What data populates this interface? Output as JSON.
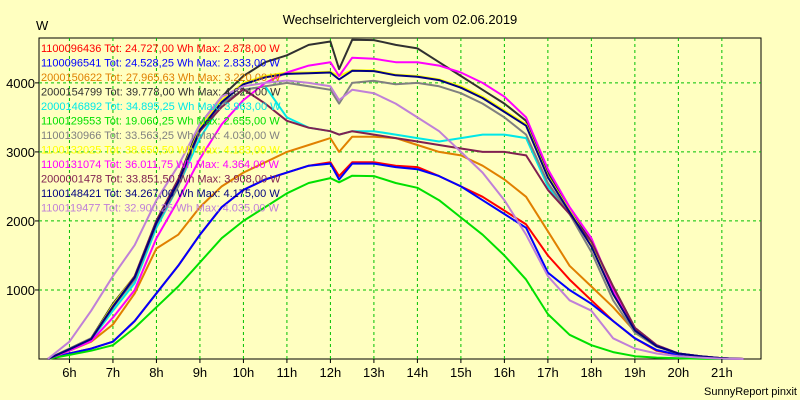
{
  "chart_data": {
    "type": "line",
    "title": "Wechselrichtervergleich vom 02.06.2019",
    "ylabel": "W",
    "xlabel": "",
    "footer": "SunnyReport pinxit",
    "ylim": [
      0,
      4650
    ],
    "xlim": [
      5.3,
      21.9
    ],
    "yticks": [
      1000,
      2000,
      3000,
      4000
    ],
    "ytick_labels": [
      "1000",
      "2000",
      "3000",
      "4000"
    ],
    "xticks": [
      6,
      7,
      8,
      9,
      10,
      11,
      12,
      13,
      14,
      15,
      16,
      17,
      18,
      19,
      20,
      21
    ],
    "xtick_labels": [
      "6h",
      "7h",
      "8h",
      "9h",
      "10h",
      "11h",
      "12h",
      "13h",
      "14h",
      "15h",
      "16h",
      "17h",
      "18h",
      "19h",
      "20h",
      "21h"
    ],
    "grid": true,
    "legend_position": "top-left",
    "x": [
      5.5,
      6,
      6.5,
      7,
      7.5,
      8,
      8.5,
      9,
      9.5,
      10,
      10.5,
      11,
      11.5,
      12,
      12.2,
      12.5,
      13,
      13.5,
      14,
      14.5,
      15,
      15.5,
      16,
      16.5,
      17,
      17.5,
      18,
      18.5,
      19,
      19.5,
      20,
      20.5,
      21,
      21.5
    ],
    "series": [
      {
        "name": "1100096436",
        "legend": "1100096436 Tot: 24.727,00 Wh Max: 2.878,00 W",
        "color": "#ff0000",
        "values": [
          0,
          80,
          150,
          250,
          550,
          950,
          1350,
          1800,
          2200,
          2450,
          2600,
          2700,
          2800,
          2850,
          2650,
          2850,
          2850,
          2800,
          2780,
          2650,
          2500,
          2350,
          2150,
          1950,
          1500,
          1150,
          850,
          550,
          300,
          120,
          60,
          30,
          10,
          0
        ]
      },
      {
        "name": "1100096541",
        "legend": "1100096541 Tot: 24.528,25 Wh Max: 2.833,00 W",
        "color": "#0000ff",
        "values": [
          0,
          80,
          150,
          250,
          550,
          950,
          1350,
          1800,
          2200,
          2450,
          2600,
          2700,
          2800,
          2830,
          2600,
          2830,
          2830,
          2780,
          2750,
          2650,
          2500,
          2300,
          2100,
          1900,
          1250,
          1000,
          800,
          550,
          300,
          130,
          60,
          30,
          10,
          0
        ]
      },
      {
        "name": "2000150622",
        "legend": "2000150622 Tot: 27.965,63 Wh Max: 3.220,00 W",
        "color": "#e08000",
        "values": [
          0,
          120,
          250,
          500,
          950,
          1600,
          1800,
          2200,
          2500,
          2700,
          2850,
          3000,
          3100,
          3200,
          3000,
          3220,
          3220,
          3200,
          3100,
          3000,
          2950,
          2800,
          2600,
          2350,
          1850,
          1350,
          1050,
          750,
          400,
          180,
          80,
          40,
          10,
          0
        ]
      },
      {
        "name": "2000154799",
        "legend": "2000154799 Tot: 39.778,00 Wh Max: 4.624,00 W",
        "color": "#303030",
        "values": [
          0,
          150,
          300,
          800,
          1200,
          2000,
          2600,
          3400,
          3800,
          4100,
          4300,
          4400,
          4550,
          4600,
          4200,
          4624,
          4620,
          4550,
          4500,
          4300,
          4100,
          3900,
          3700,
          3450,
          2700,
          2150,
          1700,
          1050,
          450,
          200,
          80,
          40,
          10,
          0
        ]
      },
      {
        "name": "2000146892",
        "legend": "2000146892 Tot: 34.895,25 Wh Max: 3.963,00 W",
        "color": "#00e8e8",
        "values": [
          0,
          130,
          280,
          700,
          1100,
          1900,
          2500,
          3200,
          3700,
          3900,
          3950,
          3500,
          3350,
          3300,
          3250,
          3300,
          3300,
          3250,
          3200,
          3150,
          3200,
          3250,
          3250,
          3200,
          2500,
          2100,
          1650,
          1000,
          450,
          200,
          80,
          40,
          10,
          0
        ]
      },
      {
        "name": "1100129553",
        "legend": "1100129553 Tot: 19.060,25 Wh Max: 2.655,00 W",
        "color": "#00e000",
        "values": [
          0,
          60,
          120,
          200,
          450,
          750,
          1050,
          1400,
          1750,
          2000,
          2200,
          2400,
          2550,
          2620,
          2560,
          2655,
          2650,
          2550,
          2480,
          2300,
          2050,
          1800,
          1500,
          1150,
          650,
          350,
          200,
          100,
          40,
          20,
          10,
          5,
          0,
          0
        ]
      },
      {
        "name": "1100130966",
        "legend": "1100130966 Tot: 33.563,25 Wh Max: 4.030,00 W",
        "color": "#808080",
        "values": [
          0,
          150,
          300,
          750,
          1150,
          1950,
          2500,
          3300,
          3700,
          3900,
          3950,
          4000,
          3950,
          3900,
          3700,
          4000,
          4030,
          3980,
          4000,
          3950,
          3850,
          3700,
          3500,
          3250,
          2550,
          2100,
          1550,
          850,
          380,
          180,
          80,
          40,
          10,
          0
        ]
      },
      {
        "name": "1100132025",
        "legend": "1100132025 Tot: 38.650,50 Wh Max: 4.183,00 W",
        "color": "#ffff00",
        "values": [
          0,
          140,
          290,
          780,
          1200,
          1980,
          2580,
          3350,
          3750,
          4000,
          4100,
          4150,
          4150,
          4160,
          4100,
          4183,
          4180,
          4120,
          4100,
          4050,
          3950,
          3800,
          3600,
          3400,
          2650,
          2150,
          1650,
          950,
          420,
          190,
          80,
          40,
          10,
          0
        ]
      },
      {
        "name": "1100131074",
        "legend": "1100131074 Tot: 36.011,75 Wh Max: 4.364,00 W",
        "color": "#ff00ff",
        "values": [
          0,
          120,
          260,
          600,
          1000,
          1750,
          2300,
          2900,
          3400,
          3750,
          4000,
          4150,
          4250,
          4300,
          4100,
          4364,
          4350,
          4300,
          4300,
          4250,
          4150,
          4000,
          3800,
          3500,
          2750,
          2200,
          1750,
          1000,
          450,
          200,
          80,
          40,
          10,
          0
        ]
      },
      {
        "name": "2000001478",
        "legend": "2000001478 Tot: 33.851,50 Wh Max: 3.908,00 W",
        "color": "#802050",
        "values": [
          0,
          140,
          290,
          750,
          1200,
          2000,
          2600,
          3300,
          3650,
          3908,
          3700,
          3450,
          3350,
          3300,
          3250,
          3300,
          3250,
          3200,
          3150,
          3100,
          3050,
          3000,
          3000,
          2950,
          2450,
          2100,
          1700,
          1050,
          450,
          200,
          80,
          40,
          10,
          0
        ]
      },
      {
        "name": "1100148421",
        "legend": "1100148421 Tot: 34.267,00 Wh Max: 4.175,00 W",
        "color": "#000080",
        "values": [
          0,
          140,
          290,
          760,
          1180,
          1970,
          2560,
          3320,
          3720,
          3980,
          4080,
          4130,
          4140,
          4150,
          4050,
          4175,
          4170,
          4110,
          4090,
          4040,
          3930,
          3780,
          3580,
          3380,
          2630,
          2130,
          1630,
          940,
          415,
          185,
          80,
          40,
          10,
          0
        ]
      },
      {
        "name": "1100119477",
        "legend": "1100119477 Tot: 32.900,25 Wh Max: 4.035,00 W",
        "color": "#c080d8",
        "values": [
          0,
          250,
          700,
          1200,
          1650,
          2300,
          2800,
          3400,
          3800,
          3950,
          4000,
          4035,
          4000,
          3950,
          3750,
          3900,
          3850,
          3700,
          3500,
          3300,
          3000,
          2700,
          2300,
          1800,
          1200,
          850,
          700,
          300,
          150,
          80,
          40,
          20,
          5,
          0
        ]
      }
    ]
  }
}
